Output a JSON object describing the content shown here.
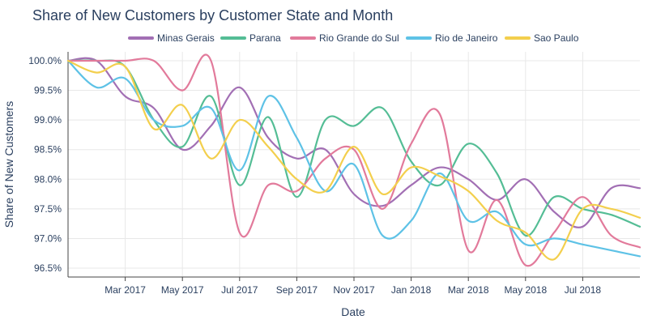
{
  "chart_data": {
    "type": "line",
    "title": "Share of New Customers by Customer State and Month",
    "xlabel": "Date",
    "ylabel": "Share of New Customers",
    "x": [
      "2017-01",
      "2017-02",
      "2017-03",
      "2017-04",
      "2017-05",
      "2017-06",
      "2017-07",
      "2017-08",
      "2017-09",
      "2017-10",
      "2017-11",
      "2017-12",
      "2018-01",
      "2018-02",
      "2018-03",
      "2018-04",
      "2018-05",
      "2018-06",
      "2018-07",
      "2018-08",
      "2018-09"
    ],
    "x_ticks": [
      {
        "value": "2017-03",
        "label": "Mar 2017"
      },
      {
        "value": "2017-05",
        "label": "May 2017"
      },
      {
        "value": "2017-07",
        "label": "Jul 2017"
      },
      {
        "value": "2017-09",
        "label": "Sep 2017"
      },
      {
        "value": "2017-11",
        "label": "Nov 2017"
      },
      {
        "value": "2018-01",
        "label": "Jan 2018"
      },
      {
        "value": "2018-03",
        "label": "Mar 2018"
      },
      {
        "value": "2018-05",
        "label": "May 2018"
      },
      {
        "value": "2018-07",
        "label": "Jul 2018"
      }
    ],
    "ylim": [
      96.35,
      100.15
    ],
    "y_ticks": [
      {
        "value": 96.5,
        "label": "96.5%"
      },
      {
        "value": 97.0,
        "label": "97.0%"
      },
      {
        "value": 97.5,
        "label": "97.5%"
      },
      {
        "value": 98.0,
        "label": "98.0%"
      },
      {
        "value": 98.5,
        "label": "98.5%"
      },
      {
        "value": 99.0,
        "label": "99.0%"
      },
      {
        "value": 99.5,
        "label": "99.5%"
      },
      {
        "value": 100.0,
        "label": "100.0%"
      }
    ],
    "series": [
      {
        "name": "Minas Gerais",
        "color": "#a26fb4",
        "values": [
          100.0,
          100.0,
          99.4,
          99.2,
          98.5,
          98.9,
          99.55,
          98.7,
          98.35,
          98.5,
          97.75,
          97.55,
          97.9,
          98.2,
          98.0,
          97.65,
          98.0,
          97.45,
          97.2,
          97.85,
          97.85
        ]
      },
      {
        "name": "Parana",
        "color": "#54bd95",
        "values": [
          100.0,
          100.0,
          99.9,
          99.0,
          98.55,
          99.4,
          97.9,
          99.05,
          97.7,
          99.0,
          98.9,
          99.2,
          98.3,
          97.9,
          98.6,
          98.1,
          97.05,
          97.7,
          97.5,
          97.4,
          97.2
        ]
      },
      {
        "name": "Rio Grande do Sul",
        "color": "#e27a9b",
        "values": [
          100.0,
          100.0,
          100.0,
          100.0,
          99.5,
          100.0,
          97.1,
          97.9,
          97.8,
          98.35,
          98.5,
          97.5,
          98.6,
          99.1,
          96.8,
          97.65,
          96.55,
          97.1,
          97.7,
          97.05,
          96.85
        ]
      },
      {
        "name": "Rio de Janeiro",
        "color": "#5ec2e6",
        "values": [
          100.0,
          99.55,
          99.7,
          99.0,
          98.9,
          99.2,
          98.15,
          99.4,
          98.7,
          97.8,
          98.25,
          97.05,
          97.3,
          98.1,
          97.3,
          97.45,
          96.9,
          97.0,
          96.9,
          96.8,
          96.7
        ]
      },
      {
        "name": "Sao Paulo",
        "color": "#f3cf4d",
        "values": [
          100.0,
          99.8,
          99.9,
          98.85,
          99.25,
          98.35,
          99.0,
          98.55,
          98.0,
          97.8,
          98.55,
          97.75,
          98.2,
          98.05,
          97.8,
          97.3,
          97.1,
          96.65,
          97.5,
          97.5,
          97.35
        ]
      }
    ],
    "legend_position": "top"
  }
}
